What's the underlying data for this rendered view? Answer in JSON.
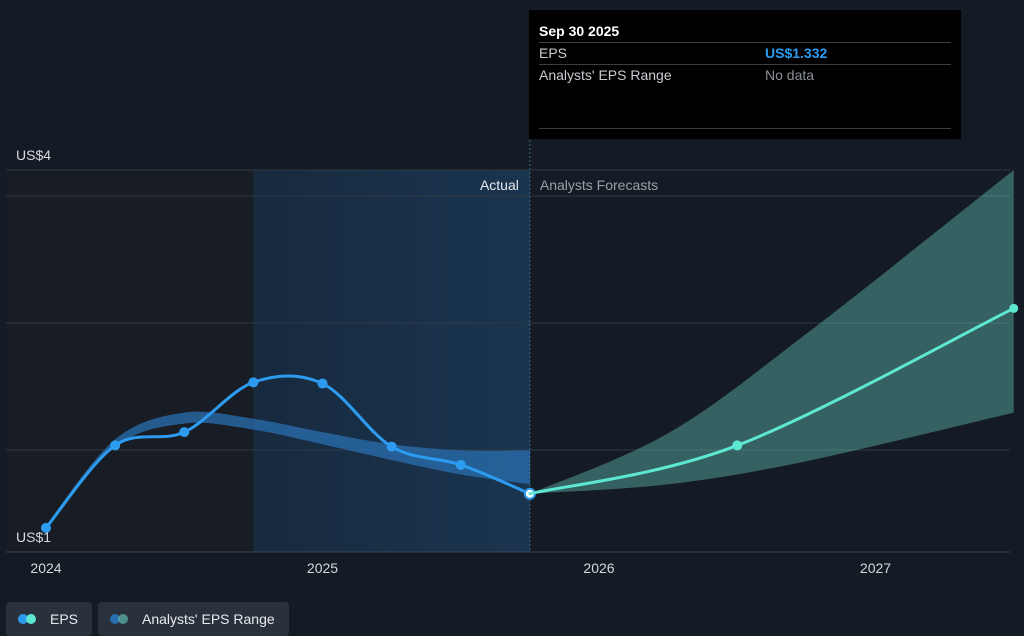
{
  "colors": {
    "eps_actual": "#2d9cf0",
    "eps_forecast": "#5ee8d3",
    "range_band": "#2a6fb0",
    "forecast_band": "#5fb8b0",
    "background": "#151b24",
    "grid": "#2f3944"
  },
  "tooltip": {
    "date": "Sep 30 2025",
    "eps_label": "EPS",
    "eps_value": "US$1.332",
    "range_label": "Analysts' EPS Range",
    "range_value": "No data"
  },
  "labels": {
    "actual": "Actual",
    "forecast": "Analysts Forecasts"
  },
  "legend": [
    {
      "label": "EPS",
      "icon": "eps-legend-icon"
    },
    {
      "label": "Analysts' EPS Range",
      "icon": "range-legend-icon"
    }
  ],
  "chart_data": {
    "type": "line",
    "y_tick_labels": [
      "US$4",
      "US$1"
    ],
    "y_ticks": [
      4,
      1
    ],
    "ylim": [
      1,
      4
    ],
    "x_ticks": [
      2024,
      2025,
      2026,
      2027
    ],
    "x_tick_labels": [
      "2024",
      "2025",
      "2026",
      "2027"
    ],
    "xlim": [
      2024,
      2027.5
    ],
    "grid": true,
    "divider_x": 2025.75,
    "highlight_start_x": 2024.75,
    "series": [
      {
        "name": "EPS",
        "kind": "actual",
        "points": [
          {
            "x": 2024.0,
            "y": 1.05
          },
          {
            "x": 2024.25,
            "y": 1.73
          },
          {
            "x": 2024.5,
            "y": 1.84
          },
          {
            "x": 2024.75,
            "y": 2.25
          },
          {
            "x": 2025.0,
            "y": 2.24
          },
          {
            "x": 2025.25,
            "y": 1.72
          },
          {
            "x": 2025.5,
            "y": 1.57
          },
          {
            "x": 2025.75,
            "y": 1.332
          }
        ]
      },
      {
        "name": "EPS",
        "kind": "forecast",
        "points": [
          {
            "x": 2025.75,
            "y": 1.332
          },
          {
            "x": 2026.5,
            "y": 1.73
          },
          {
            "x": 2027.5,
            "y": 2.86
          }
        ]
      }
    ],
    "ranges": [
      {
        "name": "Analysts' EPS Range",
        "kind": "actual",
        "upper": [
          {
            "x": 2024.0,
            "y": 1.07
          },
          {
            "x": 2024.25,
            "y": 1.78
          },
          {
            "x": 2024.5,
            "y": 2.0
          },
          {
            "x": 2024.75,
            "y": 1.95
          },
          {
            "x": 2025.0,
            "y": 1.84
          },
          {
            "x": 2025.25,
            "y": 1.74
          },
          {
            "x": 2025.5,
            "y": 1.69
          },
          {
            "x": 2025.75,
            "y": 1.69
          }
        ],
        "lower": [
          {
            "x": 2024.0,
            "y": 1.06
          },
          {
            "x": 2024.25,
            "y": 1.72
          },
          {
            "x": 2024.5,
            "y": 1.91
          },
          {
            "x": 2024.75,
            "y": 1.86
          },
          {
            "x": 2025.0,
            "y": 1.74
          },
          {
            "x": 2025.25,
            "y": 1.61
          },
          {
            "x": 2025.5,
            "y": 1.49
          },
          {
            "x": 2025.75,
            "y": 1.41
          }
        ]
      },
      {
        "name": "Analysts' EPS Range",
        "kind": "forecast",
        "upper": [
          {
            "x": 2025.75,
            "y": 1.332
          },
          {
            "x": 2026.25,
            "y": 1.83
          },
          {
            "x": 2026.75,
            "y": 2.65
          },
          {
            "x": 2027.5,
            "y": 4.0
          }
        ],
        "lower": [
          {
            "x": 2025.75,
            "y": 1.332
          },
          {
            "x": 2026.25,
            "y": 1.41
          },
          {
            "x": 2026.75,
            "y": 1.6
          },
          {
            "x": 2027.5,
            "y": 2.0
          }
        ]
      }
    ]
  }
}
